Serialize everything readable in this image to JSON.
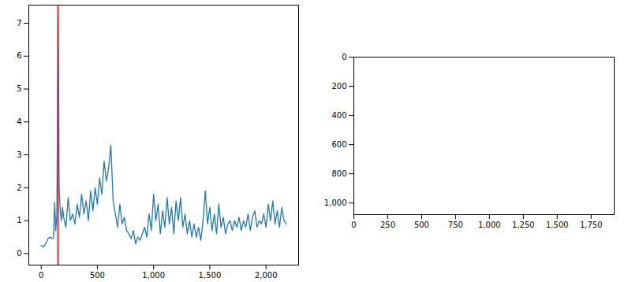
{
  "chart_data": [
    {
      "type": "line",
      "x": [
        0,
        20,
        40,
        60,
        80,
        100,
        110,
        120,
        130,
        140,
        150,
        155,
        160,
        170,
        180,
        190,
        200,
        220,
        240,
        260,
        280,
        300,
        320,
        340,
        360,
        380,
        400,
        420,
        440,
        460,
        480,
        500,
        520,
        540,
        560,
        580,
        600,
        620,
        640,
        660,
        680,
        700,
        720,
        740,
        760,
        780,
        800,
        820,
        840,
        860,
        880,
        900,
        920,
        940,
        960,
        980,
        1000,
        1020,
        1040,
        1060,
        1080,
        1100,
        1120,
        1140,
        1160,
        1180,
        1200,
        1220,
        1240,
        1260,
        1280,
        1300,
        1320,
        1340,
        1360,
        1380,
        1400,
        1420,
        1440,
        1460,
        1480,
        1500,
        1520,
        1540,
        1560,
        1580,
        1600,
        1620,
        1640,
        1660,
        1680,
        1700,
        1720,
        1740,
        1760,
        1780,
        1800,
        1820,
        1840,
        1860,
        1880,
        1900,
        1920,
        1940,
        1960,
        1980,
        2000,
        2020,
        2040,
        2060,
        2080,
        2100,
        2120,
        2140,
        2160,
        2180
      ],
      "series": [
        {
          "color": "#1f77b4",
          "values": [
            0.25,
            0.2,
            0.3,
            0.45,
            0.5,
            0.45,
            0.5,
            1.55,
            0.7,
            1.2,
            7.2,
            5.2,
            2.0,
            1.3,
            1.0,
            1.4,
            1.1,
            0.8,
            1.7,
            1.0,
            1.2,
            0.9,
            1.5,
            1.1,
            1.8,
            1.2,
            1.6,
            1.0,
            1.9,
            1.3,
            2.0,
            1.5,
            2.3,
            1.8,
            2.8,
            2.2,
            2.6,
            3.3,
            1.6,
            1.2,
            0.8,
            1.5,
            0.9,
            1.1,
            0.7,
            0.6,
            0.45,
            0.7,
            0.3,
            0.5,
            0.4,
            0.6,
            0.8,
            0.5,
            1.2,
            0.7,
            1.8,
            1.0,
            1.5,
            0.6,
            1.3,
            0.8,
            1.7,
            0.9,
            1.4,
            0.6,
            1.6,
            1.0,
            1.7,
            0.8,
            1.2,
            0.6,
            1.0,
            0.5,
            0.9,
            0.5,
            0.8,
            0.4,
            1.0,
            1.9,
            0.9,
            1.4,
            0.7,
            1.2,
            0.6,
            1.5,
            0.8,
            1.1,
            0.6,
            0.9,
            1.0,
            0.7,
            1.0,
            0.8,
            1.1,
            0.7,
            1.0,
            0.8,
            1.2,
            0.7,
            1.1,
            1.3,
            0.8,
            1.0,
            0.9,
            1.2,
            0.8,
            1.5,
            1.0,
            1.6,
            0.9,
            1.3,
            0.8,
            1.4,
            1.0,
            0.9
          ]
        }
      ],
      "vline": {
        "x": 150,
        "color": "#e8262a"
      },
      "xlim": [
        -110,
        2290
      ],
      "xticks": [
        0,
        500,
        1000,
        1500,
        2000
      ],
      "ylim": [
        -0.35,
        7.55
      ],
      "yticks": [
        0,
        1,
        2,
        3,
        4,
        5,
        6,
        7
      ]
    },
    {
      "type": "image",
      "xlim": [
        0,
        1920
      ],
      "xticks": [
        0,
        250,
        500,
        750,
        1000,
        1250,
        1500,
        1750
      ],
      "ylim": [
        1080,
        0
      ],
      "yticks": [
        0,
        200,
        400,
        600,
        800,
        1000
      ]
    }
  ]
}
